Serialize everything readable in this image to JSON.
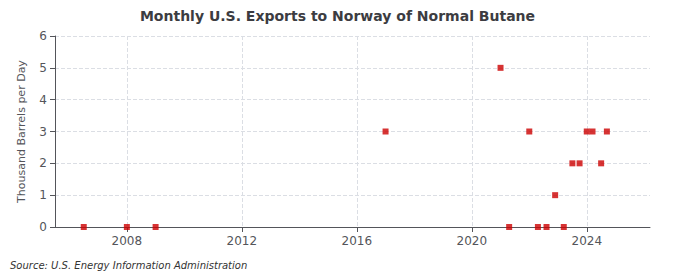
{
  "chart_data": {
    "type": "scatter",
    "title": "Monthly U.S. Exports to Norway of Normal Butane",
    "ylabel": "Thousand Barrels per Day",
    "annotation": "Source: U.S. Energy Information Administration",
    "x": [
      2006.5,
      2008.0,
      2009.0,
      2017.0,
      2021.0,
      2021.3,
      2022.0,
      2022.3,
      2022.6,
      2022.9,
      2023.2,
      2023.5,
      2023.75,
      2024.0,
      2024.2,
      2024.5,
      2024.7
    ],
    "values": [
      0,
      0,
      0,
      3,
      5,
      0,
      3,
      0,
      0,
      1,
      0,
      2,
      2,
      3,
      3,
      2,
      3
    ],
    "color": "#cc0000",
    "marker": "square",
    "xlim": [
      2005.5,
      2026.2
    ],
    "ylim": [
      0,
      6
    ],
    "xticks": [
      2008,
      2012,
      2016,
      2020,
      2024
    ],
    "yticks": [
      0,
      1,
      2,
      3,
      4,
      5,
      6
    ],
    "grid": true
  }
}
